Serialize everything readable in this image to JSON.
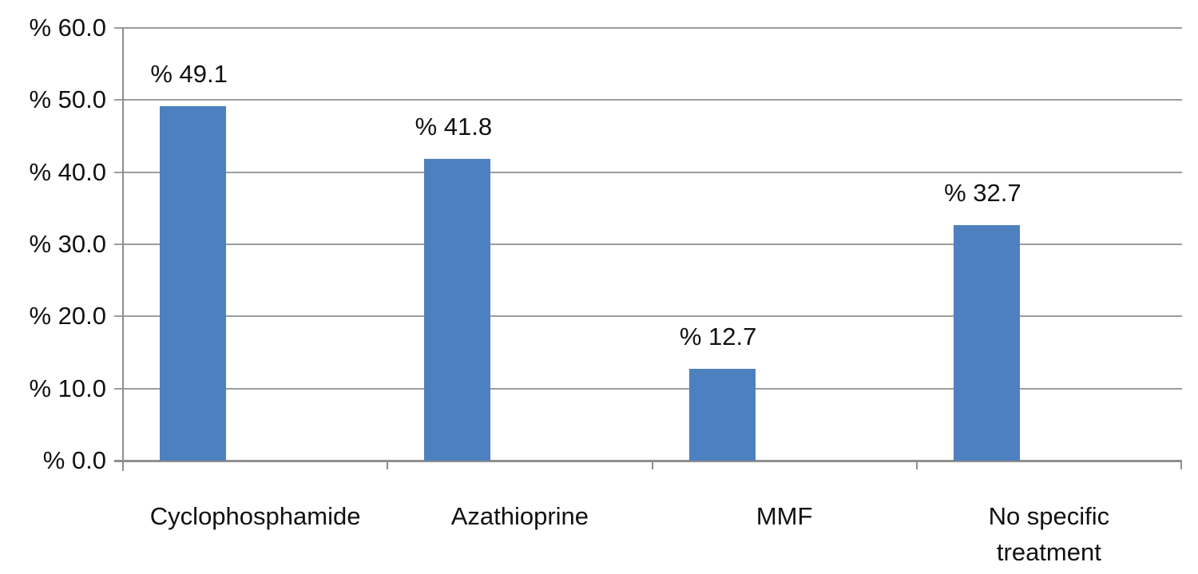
{
  "chart_data": {
    "type": "bar",
    "title": "",
    "categories": [
      "Cyclophosphamide",
      "Azathioprine",
      "MMF",
      "No specific treatment"
    ],
    "values": [
      49.1,
      41.8,
      12.7,
      32.7
    ],
    "bar_value_labels": [
      "% 49.1",
      "% 41.8",
      "% 12.7",
      "% 32.7"
    ],
    "y_ticks": [
      {
        "value": 0,
        "label": "% 0.0"
      },
      {
        "value": 10,
        "label": "% 10.0"
      },
      {
        "value": 20,
        "label": "% 20.0"
      },
      {
        "value": 30,
        "label": "% 30.0"
      },
      {
        "value": 40,
        "label": "% 40.0"
      },
      {
        "value": 50,
        "label": "% 50.0"
      },
      {
        "value": 60,
        "label": "% 60.0"
      }
    ],
    "ylim": [
      0,
      60
    ],
    "xlabel": "",
    "ylabel": "",
    "legend": "none",
    "grid": "horizontal",
    "colors": {
      "bar_fill": "#4d80bf",
      "gridline": "#9c9c9c",
      "axis": "#8f8f8f",
      "text": "#111111",
      "background": "#ffffff"
    }
  }
}
